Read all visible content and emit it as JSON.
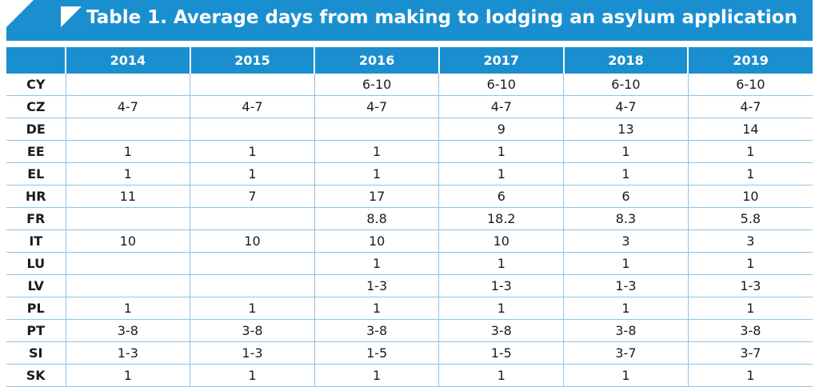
{
  "title": "Table 1. Average days from making to lodging an asylum application",
  "header": {
    "corner": "",
    "years": [
      "2014",
      "2015",
      "2016",
      "2017",
      "2018",
      "2019"
    ]
  },
  "rows": [
    {
      "code": "CY",
      "values": [
        "",
        "",
        "6-10",
        "6-10",
        "6-10",
        "6-10"
      ]
    },
    {
      "code": "CZ",
      "values": [
        "4-7",
        "4-7",
        "4-7",
        "4-7",
        "4-7",
        "4-7"
      ]
    },
    {
      "code": "DE",
      "values": [
        "",
        "",
        "",
        "9",
        "13",
        "14"
      ]
    },
    {
      "code": "EE",
      "values": [
        "1",
        "1",
        "1",
        "1",
        "1",
        "1"
      ]
    },
    {
      "code": "EL",
      "values": [
        "1",
        "1",
        "1",
        "1",
        "1",
        "1"
      ]
    },
    {
      "code": "HR",
      "values": [
        "11",
        "7",
        "17",
        "6",
        "6",
        "10"
      ]
    },
    {
      "code": "FR",
      "values": [
        "",
        "",
        "8.8",
        "18.2",
        "8.3",
        "5.8"
      ]
    },
    {
      "code": "IT",
      "values": [
        "10",
        "10",
        "10",
        "10",
        "3",
        "3"
      ]
    },
    {
      "code": "LU",
      "values": [
        "",
        "",
        "1",
        "1",
        "1",
        "1"
      ]
    },
    {
      "code": "LV",
      "values": [
        "",
        "",
        "1-3",
        "1-3",
        "1-3",
        "1-3"
      ]
    },
    {
      "code": "PL",
      "values": [
        "1",
        "1",
        "1",
        "1",
        "1",
        "1"
      ]
    },
    {
      "code": "PT",
      "values": [
        "3-8",
        "3-8",
        "3-8",
        "3-8",
        "3-8",
        "3-8"
      ]
    },
    {
      "code": "SI",
      "values": [
        "1-3",
        "1-3",
        "1-5",
        "1-5",
        "3-7",
        "3-7"
      ]
    },
    {
      "code": "SK",
      "values": [
        "1",
        "1",
        "1",
        "1",
        "1",
        "1"
      ]
    }
  ],
  "colors": {
    "accent": "#1a8fd0",
    "rule": "#8fc3e6"
  }
}
